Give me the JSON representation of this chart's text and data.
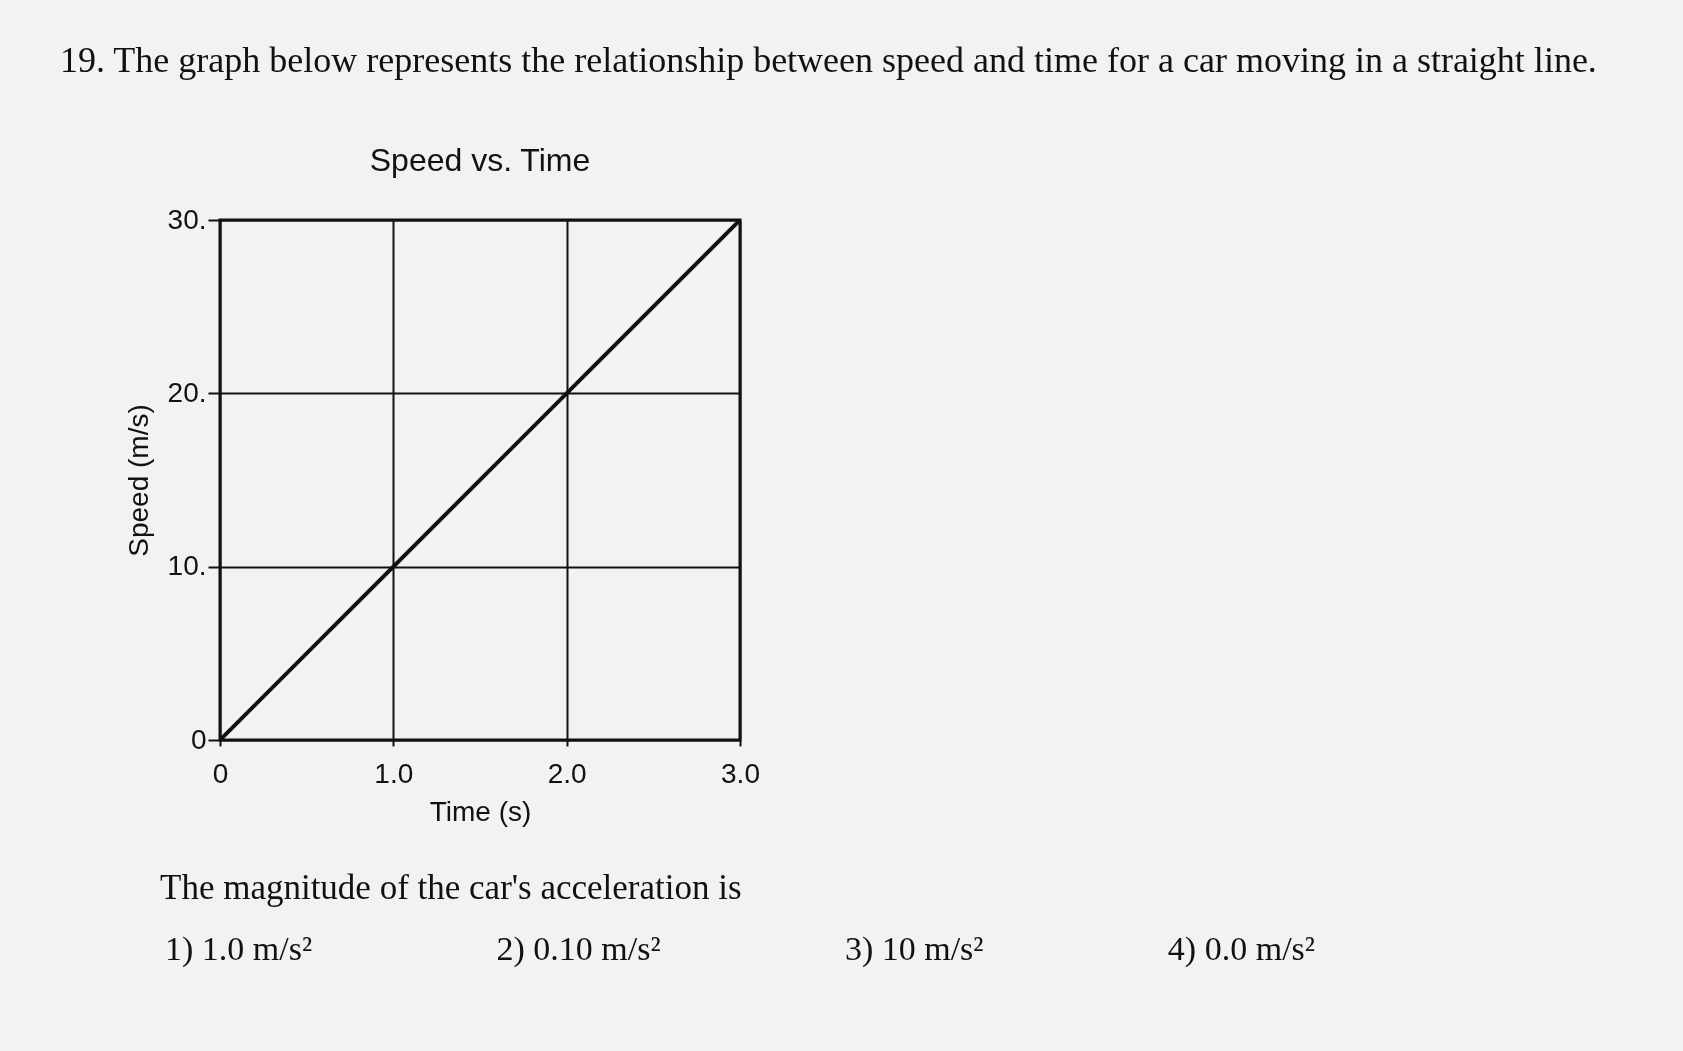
{
  "chart_data": {
    "type": "line",
    "title": "Speed vs. Time",
    "xlabel": "Time (s)",
    "ylabel": "Speed (m/s)",
    "x": [
      0,
      3
    ],
    "series": [
      {
        "color": "#111111",
        "values": [
          0,
          30
        ]
      }
    ],
    "xlim": [
      0,
      3
    ],
    "ylim": [
      0,
      30
    ],
    "xticks": [
      0,
      {
        "value": 1,
        "label": "1.0"
      },
      {
        "value": 2,
        "label": "2.0"
      },
      {
        "value": 3,
        "label": "3.0"
      }
    ],
    "yticks": [
      0,
      {
        "value": 10,
        "label": "10."
      },
      {
        "value": 20,
        "label": "20."
      },
      {
        "value": 30,
        "label": "30."
      }
    ],
    "grid": true,
    "annotations": [
      "19. The graph below represents the relationship between speed and time for a car moving in a straight line.",
      "The magnitude of the car's acceleration is",
      "1) 1.0 m/s²",
      "2) 0.10 m/s²",
      "3) 10 m/s²",
      "4) 0.0 m/s²"
    ]
  }
}
